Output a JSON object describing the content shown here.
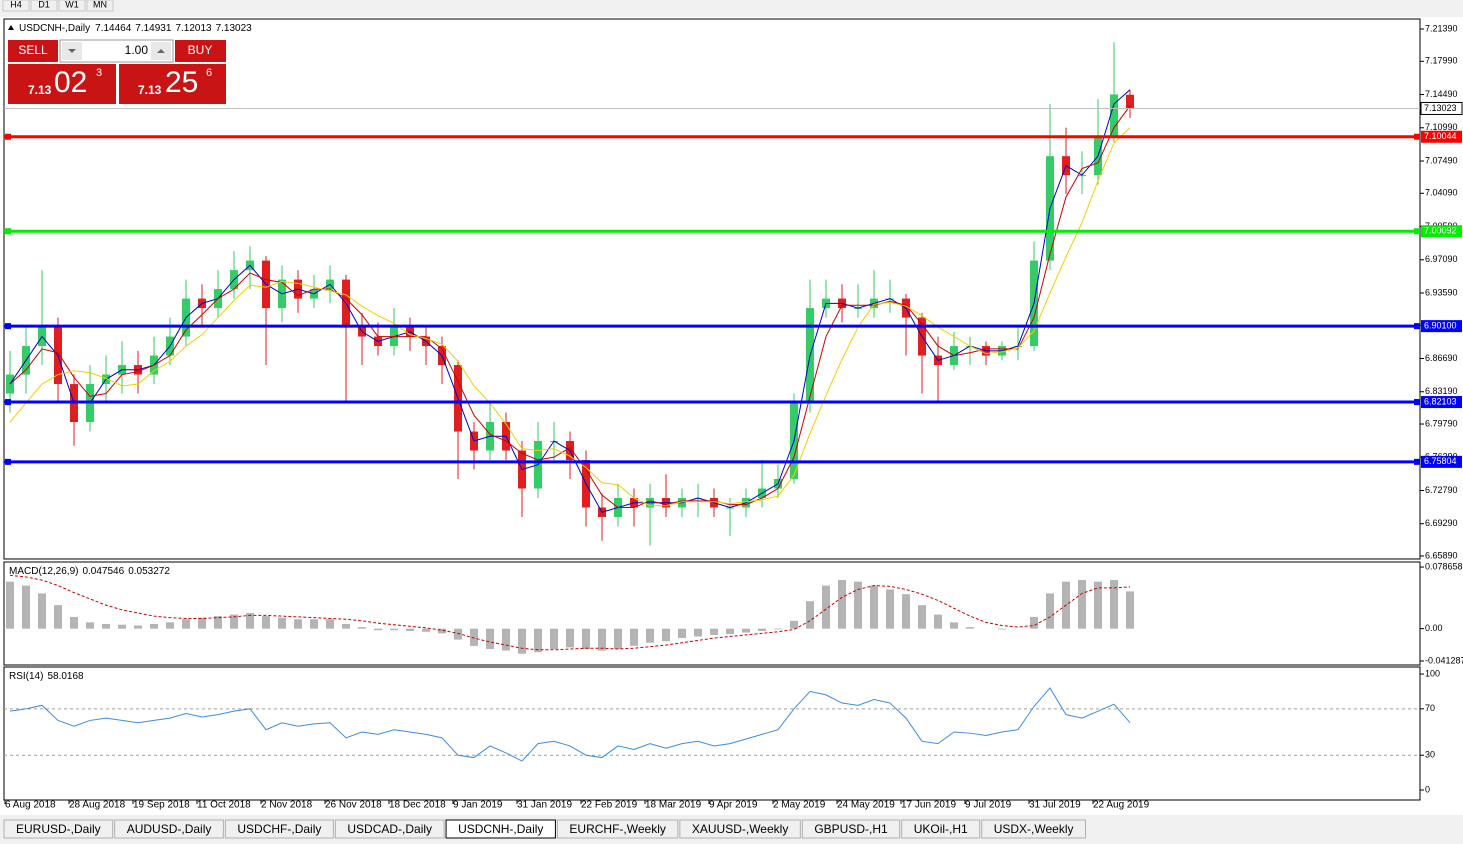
{
  "toolbar": {
    "timeframes": [
      "H4",
      "D1",
      "W1",
      "MN"
    ]
  },
  "trade_panel": {
    "sell": "SELL",
    "lot": "1.00",
    "buy": "BUY",
    "sell_price": {
      "big": "7.13",
      "pips": "02",
      "fraction": "3"
    },
    "buy_price": {
      "big": "7.13",
      "pips": "25",
      "fraction": "6"
    }
  },
  "tabs": {
    "items": [
      "EURUSD-,Daily",
      "AUDUSD-,Daily",
      "USDCHF-,Daily",
      "USDCAD-,Daily",
      "USDCNH-,Daily",
      "EURCHF-,Weekly",
      "XAUUSD-,Weekly",
      "GBPUSD-,H1",
      "UKOil-,H1",
      "USDX-,Weekly"
    ],
    "active": 4
  },
  "chart_data": [
    {
      "type": "candlestick",
      "title": "USDCNH-,Daily",
      "categories": [
        "6 Aug 2018",
        null,
        null,
        null,
        "28 Aug 2018",
        null,
        null,
        null,
        "19 Sep 2018",
        null,
        null,
        null,
        "11 Oct 2018",
        null,
        null,
        null,
        "2 Nov 2018",
        null,
        null,
        null,
        "26 Nov 2018",
        null,
        null,
        null,
        "18 Dec 2018",
        null,
        null,
        null,
        "9 Jan 2019",
        null,
        null,
        null,
        "31 Jan 2019",
        null,
        null,
        null,
        "22 Feb 2019",
        null,
        null,
        null,
        "18 Mar 2019",
        null,
        null,
        null,
        "9 Apr 2019",
        null,
        null,
        null,
        "2 May 2019",
        null,
        null,
        null,
        "24 May 2019",
        null,
        null,
        null,
        "17 Jun 2019",
        null,
        null,
        null,
        "9 Jul 2019",
        null,
        null,
        null,
        "31 Jul 2019",
        null,
        null,
        null,
        "22 Aug 2019",
        null,
        null
      ],
      "open": [
        6.83,
        6.85,
        6.88,
        6.9,
        6.84,
        6.8,
        6.84,
        6.85,
        6.86,
        6.85,
        6.87,
        6.89,
        6.93,
        6.92,
        6.94,
        6.96,
        6.97,
        6.92,
        6.95,
        6.93,
        6.94,
        6.95,
        6.9,
        6.89,
        6.88,
        6.9,
        6.89,
        6.88,
        6.86,
        6.79,
        6.77,
        6.8,
        6.77,
        6.73,
        6.78,
        6.78,
        6.76,
        6.71,
        6.7,
        6.72,
        6.71,
        6.72,
        6.71,
        6.72,
        6.72,
        6.71,
        6.71,
        6.72,
        6.73,
        6.74,
        6.82,
        6.92,
        6.93,
        6.92,
        6.92,
        6.93,
        6.93,
        6.91,
        6.87,
        6.86,
        6.88,
        6.88,
        6.87,
        6.88,
        6.88,
        6.97,
        7.08,
        7.06,
        7.06,
        7.1,
        7.14464
      ],
      "high": [
        6.875,
        6.9,
        6.96,
        6.91,
        6.85,
        6.86,
        6.87,
        6.885,
        6.875,
        6.89,
        6.91,
        6.95,
        6.945,
        6.96,
        6.98,
        6.985,
        6.975,
        6.965,
        6.96,
        6.955,
        6.965,
        6.955,
        6.915,
        6.905,
        6.92,
        6.91,
        6.9,
        6.89,
        6.865,
        6.8,
        6.82,
        6.81,
        6.78,
        6.8,
        6.8,
        6.79,
        6.77,
        6.725,
        6.735,
        6.73,
        6.735,
        6.745,
        6.73,
        6.735,
        6.73,
        6.72,
        6.73,
        6.76,
        6.755,
        6.83,
        6.95,
        6.95,
        6.945,
        6.945,
        6.96,
        6.95,
        6.935,
        6.915,
        6.89,
        6.895,
        6.89,
        6.885,
        6.885,
        6.9,
        6.99,
        7.135,
        7.11,
        7.085,
        7.14,
        7.2,
        7.14931
      ],
      "low": [
        6.81,
        6.83,
        6.86,
        6.82,
        6.775,
        6.79,
        6.82,
        6.83,
        6.83,
        6.84,
        6.86,
        6.88,
        6.9,
        6.91,
        6.93,
        6.94,
        6.86,
        6.905,
        6.915,
        6.92,
        6.925,
        6.82,
        6.86,
        6.87,
        6.87,
        6.875,
        6.86,
        6.84,
        6.74,
        6.75,
        6.76,
        6.76,
        6.7,
        6.72,
        6.76,
        6.74,
        6.69,
        6.675,
        6.69,
        6.69,
        6.67,
        6.7,
        6.7,
        6.7,
        6.7,
        6.68,
        6.7,
        6.71,
        6.72,
        6.735,
        6.81,
        6.91,
        6.905,
        6.91,
        6.91,
        6.915,
        6.87,
        6.83,
        6.82,
        6.855,
        6.86,
        6.86,
        6.865,
        6.865,
        6.875,
        6.96,
        7.04,
        7.04,
        7.05,
        7.095,
        7.12013
      ],
      "close": [
        6.85,
        6.88,
        6.9,
        6.84,
        6.8,
        6.84,
        6.85,
        6.86,
        6.85,
        6.87,
        6.89,
        6.93,
        6.92,
        6.94,
        6.96,
        6.97,
        6.92,
        6.95,
        6.93,
        6.94,
        6.95,
        6.9,
        6.89,
        6.88,
        6.9,
        6.89,
        6.88,
        6.86,
        6.79,
        6.77,
        6.8,
        6.77,
        6.73,
        6.78,
        6.78,
        6.76,
        6.71,
        6.7,
        6.72,
        6.71,
        6.72,
        6.71,
        6.72,
        6.72,
        6.71,
        6.71,
        6.72,
        6.73,
        6.74,
        6.82,
        6.92,
        6.93,
        6.92,
        6.92,
        6.93,
        6.93,
        6.91,
        6.87,
        6.86,
        6.88,
        6.88,
        6.87,
        6.88,
        6.88,
        6.97,
        7.08,
        7.06,
        7.06,
        7.1,
        7.145,
        7.13023
      ],
      "up_color": "#33cc66",
      "down_color": "#dd1f1f",
      "ma": [
        {
          "color": "#0000cc",
          "values": [
            6.84,
            6.865,
            6.89,
            6.87,
            6.82,
            6.82,
            6.845,
            6.855,
            6.855,
            6.86,
            6.88,
            6.91,
            6.925,
            6.93,
            6.95,
            6.965,
            6.945,
            6.935,
            6.94,
            6.935,
            6.945,
            6.925,
            6.895,
            6.885,
            6.89,
            6.895,
            6.885,
            6.87,
            6.825,
            6.78,
            6.785,
            6.785,
            6.75,
            6.755,
            6.78,
            6.77,
            6.735,
            6.705,
            6.71,
            6.715,
            6.715,
            6.715,
            6.715,
            6.72,
            6.715,
            6.71,
            6.715,
            6.725,
            6.735,
            6.78,
            6.87,
            6.925,
            6.925,
            6.92,
            6.925,
            6.93,
            6.92,
            6.89,
            6.865,
            6.87,
            6.88,
            6.875,
            6.875,
            6.88,
            6.925,
            7.025,
            7.07,
            7.06,
            7.08,
            7.135,
            7.15
          ]
        },
        {
          "color": "#cc0000",
          "values": [
            6.84,
            6.855,
            6.877,
            6.873,
            6.847,
            6.827,
            6.83,
            6.85,
            6.853,
            6.86,
            6.87,
            6.897,
            6.913,
            6.93,
            6.94,
            6.957,
            6.95,
            6.947,
            6.933,
            6.94,
            6.94,
            6.93,
            6.913,
            6.89,
            6.89,
            6.89,
            6.89,
            6.877,
            6.843,
            6.807,
            6.787,
            6.78,
            6.767,
            6.76,
            6.763,
            6.773,
            6.75,
            6.723,
            6.71,
            6.71,
            6.717,
            6.713,
            6.717,
            6.717,
            6.717,
            6.713,
            6.713,
            6.72,
            6.73,
            6.763,
            6.827,
            6.89,
            6.923,
            6.923,
            6.923,
            6.927,
            6.923,
            6.903,
            6.88,
            6.87,
            6.873,
            6.877,
            6.877,
            6.877,
            6.91,
            6.977,
            7.037,
            7.067,
            7.073,
            7.11,
            7.133
          ]
        },
        {
          "color": "#f0d000",
          "values": [
            6.8,
            6.82,
            6.84,
            6.85,
            6.854,
            6.852,
            6.846,
            6.838,
            6.84,
            6.854,
            6.864,
            6.88,
            6.892,
            6.91,
            6.928,
            6.944,
            6.942,
            6.948,
            6.946,
            6.942,
            6.938,
            6.934,
            6.922,
            6.912,
            6.904,
            6.892,
            6.888,
            6.882,
            6.864,
            6.838,
            6.82,
            6.798,
            6.772,
            6.77,
            6.772,
            6.764,
            6.752,
            6.736,
            6.734,
            6.72,
            6.712,
            6.712,
            6.716,
            6.716,
            6.716,
            6.714,
            6.716,
            6.718,
            6.722,
            6.744,
            6.788,
            6.828,
            6.866,
            6.9,
            6.924,
            6.926,
            6.922,
            6.912,
            6.9,
            6.89,
            6.88,
            6.872,
            6.874,
            6.878,
            6.896,
            6.936,
            6.974,
            7.01,
            7.054,
            7.094,
            7.11
          ]
        }
      ],
      "levels": [
        {
          "value": 7.10044,
          "label": "7.10044",
          "color": "#ff0000"
        },
        {
          "value": 7.00092,
          "label": "7.00092",
          "color": "#00ee00"
        },
        {
          "value": 6.901,
          "label": "6.90100",
          "color": "#0000ff"
        },
        {
          "value": 6.82103,
          "label": "6.82103",
          "color": "#0000ff"
        },
        {
          "value": 6.75804,
          "label": "6.75804",
          "color": "#0000ff"
        }
      ],
      "ylim": [
        6.6568,
        7.2234
      ],
      "yticks": [
        {
          "value": 7.2139,
          "label": "7.21390"
        },
        {
          "value": 7.1799,
          "label": "7.17990"
        },
        {
          "value": 7.1449,
          "label": "7.14490"
        },
        {
          "value": 7.1099,
          "label": "7.10990"
        },
        {
          "value": 7.0749,
          "label": "7.07490"
        },
        {
          "value": 7.0409,
          "label": "7.04090"
        },
        {
          "value": 7.0059,
          "label": "7.00590"
        },
        {
          "value": 6.9709,
          "label": "6.97090"
        },
        {
          "value": 6.9359,
          "label": "6.93590"
        },
        {
          "value": 6.9019,
          "label": "6.90190"
        },
        {
          "value": 6.8669,
          "label": "6.86690"
        },
        {
          "value": 6.8319,
          "label": "6.83190"
        },
        {
          "value": 6.7979,
          "label": "6.79790"
        },
        {
          "value": 6.7629,
          "label": "6.76290"
        },
        {
          "value": 6.7279,
          "label": "6.72790"
        },
        {
          "value": 6.6929,
          "label": "6.69290"
        },
        {
          "value": 6.6589,
          "label": "6.65890"
        }
      ]
    },
    {
      "type": "macd",
      "title": "MACD(12,26,9)",
      "histogram": {
        "color": "#b4b4b4",
        "values": [
          0.06,
          0.055,
          0.045,
          0.03,
          0.015,
          0.008,
          0.006,
          0.005,
          0.004,
          0.006,
          0.008,
          0.012,
          0.014,
          0.016,
          0.018,
          0.02,
          0.016,
          0.014,
          0.012,
          0.012,
          0.012,
          0.006,
          0.002,
          -0.002,
          -0.002,
          -0.003,
          -0.004,
          -0.006,
          -0.014,
          -0.022,
          -0.026,
          -0.028,
          -0.032,
          -0.03,
          -0.026,
          -0.024,
          -0.026,
          -0.028,
          -0.026,
          -0.022,
          -0.018,
          -0.016,
          -0.012,
          -0.01,
          -0.008,
          -0.007,
          -0.005,
          -0.003,
          -0.001,
          0.01,
          0.035,
          0.055,
          0.062,
          0.06,
          0.055,
          0.05,
          0.044,
          0.03,
          0.018,
          0.008,
          0.002,
          0,
          -0.001,
          0,
          0.015,
          0.045,
          0.06,
          0.062,
          0.06,
          0.062,
          0.047546
        ]
      },
      "signal": {
        "color": "#cc0000",
        "values": [
          0.068,
          0.066,
          0.062,
          0.055,
          0.046,
          0.038,
          0.03,
          0.024,
          0.02,
          0.016,
          0.014,
          0.013,
          0.013,
          0.014,
          0.015,
          0.017,
          0.017,
          0.016,
          0.015,
          0.014,
          0.013,
          0.012,
          0.01,
          0.007,
          0.005,
          0.003,
          0.001,
          -0.002,
          -0.006,
          -0.012,
          -0.017,
          -0.021,
          -0.025,
          -0.027,
          -0.027,
          -0.026,
          -0.025,
          -0.025,
          -0.026,
          -0.025,
          -0.023,
          -0.021,
          -0.018,
          -0.015,
          -0.012,
          -0.01,
          -0.008,
          -0.006,
          -0.004,
          -0.001,
          0.01,
          0.025,
          0.04,
          0.05,
          0.055,
          0.054,
          0.05,
          0.044,
          0.036,
          0.026,
          0.016,
          0.008,
          0.004,
          0.002,
          0.004,
          0.015,
          0.03,
          0.045,
          0.052,
          0.052,
          0.053272
        ]
      },
      "ylim": [
        -0.0464,
        0.0838
      ],
      "yticks": [
        0.078658,
        {
          "value": 0,
          "label": "0.00"
        },
        -0.041287
      ]
    },
    {
      "type": "line",
      "title": "RSI(14)",
      "color": "#3c8dde",
      "values": [
        68,
        70,
        73,
        60,
        55,
        60,
        62,
        60,
        58,
        60,
        62,
        66,
        63,
        65,
        68,
        70,
        52,
        58,
        55,
        57,
        58,
        45,
        50,
        48,
        52,
        50,
        48,
        45,
        30,
        28,
        38,
        32,
        25,
        40,
        42,
        38,
        30,
        28,
        38,
        35,
        40,
        36,
        40,
        42,
        38,
        40,
        44,
        48,
        52,
        70,
        85,
        82,
        75,
        73,
        78,
        75,
        62,
        42,
        40,
        50,
        49,
        47,
        50,
        52,
        72,
        88,
        65,
        62,
        68,
        74,
        58.0168
      ],
      "levels": [
        70,
        30
      ],
      "ylim": [
        -8.6,
        105.2
      ],
      "yticks": [
        100,
        70,
        30,
        0
      ]
    }
  ]
}
